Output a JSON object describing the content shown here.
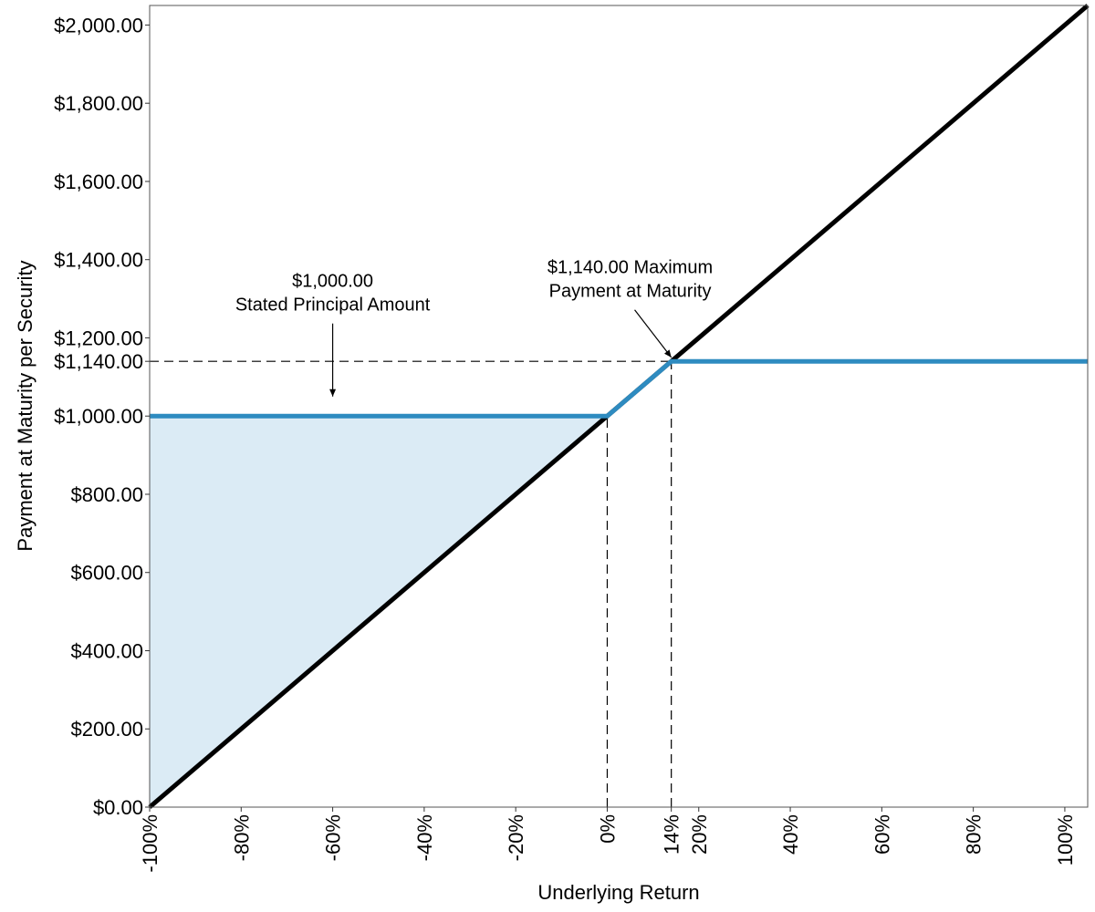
{
  "chart_data": {
    "type": "line",
    "title": "",
    "xlabel": "Underlying Return",
    "ylabel": "Payment at Maturity per Security",
    "xlim": [
      -100,
      105
    ],
    "ylim": [
      0,
      2050
    ],
    "x_ticks": [
      {
        "value": -100,
        "label": "-100%"
      },
      {
        "value": -80,
        "label": "-80%"
      },
      {
        "value": -60,
        "label": "-60%"
      },
      {
        "value": -40,
        "label": "-40%"
      },
      {
        "value": -20,
        "label": "-20%"
      },
      {
        "value": 0,
        "label": "0%"
      },
      {
        "value": 14,
        "label": "14%"
      },
      {
        "value": 20,
        "label": "20%"
      },
      {
        "value": 40,
        "label": "40%"
      },
      {
        "value": 60,
        "label": "60%"
      },
      {
        "value": 80,
        "label": "80%"
      },
      {
        "value": 100,
        "label": "100%"
      }
    ],
    "y_ticks": [
      {
        "value": 0,
        "label": "$0.00"
      },
      {
        "value": 200,
        "label": "$200.00"
      },
      {
        "value": 400,
        "label": "$400.00"
      },
      {
        "value": 600,
        "label": "$600.00"
      },
      {
        "value": 800,
        "label": "$800.00"
      },
      {
        "value": 1000,
        "label": "$1,000.00"
      },
      {
        "value": 1140,
        "label": "$1,140.00"
      },
      {
        "value": 1200,
        "label": "$1,200.00"
      },
      {
        "value": 1400,
        "label": "$1,400.00"
      },
      {
        "value": 1600,
        "label": "$1,600.00"
      },
      {
        "value": 1800,
        "label": "$1,800.00"
      },
      {
        "value": 2000,
        "label": "$2,000.00"
      }
    ],
    "grid": false,
    "legend": "none",
    "series": [
      {
        "role": "underlying",
        "color": "#000000",
        "x": [
          -100,
          105
        ],
        "y": [
          0,
          2050
        ]
      },
      {
        "role": "security-payoff",
        "color": "#2e8bc0",
        "x": [
          -100,
          0,
          14,
          105
        ],
        "y": [
          1000,
          1000,
          1140,
          1140
        ]
      }
    ],
    "shaded_region": {
      "color": "#dbebf5",
      "x": [
        -100,
        0
      ],
      "between": "underlying and security-payoff"
    },
    "reference_lines": [
      {
        "orientation": "horizontal",
        "value": 1140,
        "from_x": -100,
        "to_x": 14
      },
      {
        "orientation": "vertical",
        "value": 0,
        "from_y": 0,
        "to_y": 1000
      },
      {
        "orientation": "vertical",
        "value": 14,
        "from_y": 0,
        "to_y": 1140
      }
    ],
    "annotations": [
      {
        "id": "principal",
        "lines": [
          "$1,000.00",
          "Stated Principal Amount"
        ],
        "text_x": -60,
        "text_y": 1330,
        "target_x": -60,
        "target_y": 1050
      },
      {
        "id": "maximum",
        "lines": [
          "$1,140.00 Maximum",
          "Payment at Maturity"
        ],
        "text_x": 5,
        "text_y": 1365,
        "target_x": 14,
        "target_y": 1150
      }
    ]
  }
}
